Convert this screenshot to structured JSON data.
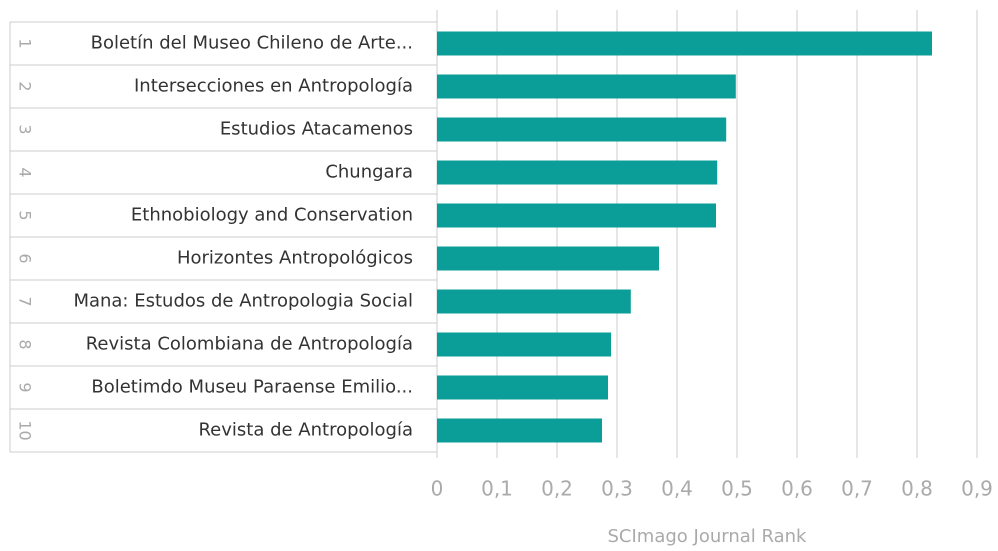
{
  "chart_data": {
    "type": "barh",
    "xlabel": "SCImago Journal Rank",
    "ranks": [
      1,
      2,
      3,
      4,
      5,
      6,
      7,
      8,
      9,
      10
    ],
    "categories": [
      "Boletín del Museo Chileno de Arte...",
      "Intersecciones en Antropología",
      "Estudios Atacamenos",
      "Chungara",
      "Ethnobiology and Conservation",
      "Horizontes Antropológicos",
      "Mana: Estudos de Antropologia Social",
      "Revista Colombiana de Antropología",
      "Boletimdo Museu Paraense Emilio...",
      "Revista de Antropología"
    ],
    "values": [
      0.825,
      0.498,
      0.482,
      0.467,
      0.465,
      0.37,
      0.323,
      0.29,
      0.285,
      0.275
    ],
    "color": "#0b9e99",
    "xlim": [
      0,
      0.9
    ],
    "xticks": [
      0,
      {
        "value": 0.1,
        "label": "0,1"
      },
      {
        "value": 0.2,
        "label": "0,2"
      },
      {
        "value": 0.3,
        "label": "0,3"
      },
      {
        "value": 0.4,
        "label": "0,4"
      },
      {
        "value": 0.5,
        "label": "0,5"
      },
      {
        "value": 0.6,
        "label": "0,6"
      },
      {
        "value": 0.7,
        "label": "0,7"
      },
      {
        "value": 0.8,
        "label": "0,8"
      },
      {
        "value": 0.9,
        "label": "0,9"
      }
    ],
    "grid": true
  }
}
